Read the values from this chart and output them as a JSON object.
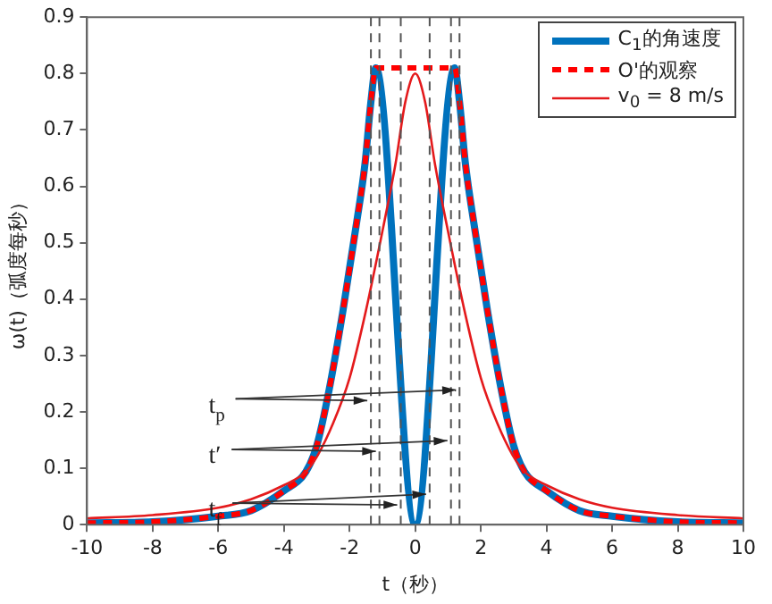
{
  "chart_data": {
    "type": "line",
    "xlabel": "t（秒）",
    "ylabel": "ω(t)（弧度每秒）",
    "xlim": [
      -10,
      10
    ],
    "xticks": [
      -10,
      -8,
      -6,
      -4,
      -2,
      0,
      2,
      4,
      6,
      8,
      10
    ],
    "ylim": [
      0,
      0.9
    ],
    "yticks": [
      0,
      0.1,
      0.2,
      0.3,
      0.4,
      0.5,
      0.6,
      0.7,
      0.8,
      0.9
    ],
    "grid": false,
    "legend": "top right",
    "marker": "none",
    "series": [
      {
        "name": "C$_{1}$的角速度",
        "color": "#0072bd",
        "line_style": "solid",
        "x": [
          -10,
          -8,
          -6,
          -5,
          -4,
          -3.33,
          -3,
          -2.62,
          -2.2,
          -1.8,
          -1.53,
          -1.35,
          -1.2,
          0,
          1.2,
          1.35,
          1.53,
          1.8,
          2.2,
          2.62,
          3,
          3.33,
          4,
          5,
          6,
          8,
          10
        ],
        "values": [
          0.003,
          0.005,
          0.015,
          0.025,
          0.06,
          0.094,
          0.14,
          0.24,
          0.38,
          0.53,
          0.64,
          0.75,
          0.81,
          0,
          0.81,
          0.75,
          0.64,
          0.53,
          0.38,
          0.24,
          0.14,
          0.094,
          0.06,
          0.025,
          0.015,
          0.005,
          0.003
        ]
      },
      {
        "name": "O'的观察",
        "color": "#ff0000",
        "line_style": "dashed",
        "x": [
          -10,
          -8,
          -6,
          -5,
          -4,
          -3.33,
          -3,
          -2.62,
          -2.2,
          -1.8,
          -1.53,
          -1.35,
          -1.2,
          1.2,
          1.35,
          1.53,
          1.8,
          2.2,
          2.62,
          3,
          3.33,
          4,
          5,
          6,
          8,
          10
        ],
        "values": [
          0.003,
          0.005,
          0.015,
          0.025,
          0.06,
          0.094,
          0.14,
          0.24,
          0.38,
          0.53,
          0.64,
          0.75,
          0.81,
          0.81,
          0.75,
          0.64,
          0.53,
          0.38,
          0.24,
          0.14,
          0.094,
          0.06,
          0.025,
          0.015,
          0.005,
          0.003
        ]
      },
      {
        "name": "v$_{0}$ = 8 m/s",
        "color": "#e41a1c",
        "line_style": "solid",
        "x": [
          -10,
          -8,
          -6,
          -5,
          -4,
          -3.33,
          -3,
          -2.5,
          -2,
          -1.5,
          -1,
          -0.6,
          -0.3,
          0,
          0.3,
          0.6,
          1,
          1.5,
          2,
          2.5,
          3,
          3.33,
          4,
          5,
          6,
          8,
          10
        ],
        "values": [
          0.011,
          0.017,
          0.03,
          0.045,
          0.07,
          0.094,
          0.12,
          0.18,
          0.26,
          0.38,
          0.52,
          0.64,
          0.75,
          0.8,
          0.75,
          0.64,
          0.52,
          0.38,
          0.26,
          0.18,
          0.12,
          0.094,
          0.07,
          0.045,
          0.03,
          0.017,
          0.011
        ]
      }
    ],
    "ref_lines": [
      {
        "axis": "x",
        "value": -1.35,
        "color": "#555555",
        "line_style": "dashed"
      },
      {
        "axis": "x",
        "value": -1.09,
        "color": "#555555",
        "line_style": "dashed"
      },
      {
        "axis": "x",
        "value": -0.44,
        "color": "#555555",
        "line_style": "dashed"
      },
      {
        "axis": "x",
        "value": 0.44,
        "color": "#555555",
        "line_style": "dashed"
      },
      {
        "axis": "x",
        "value": 1.09,
        "color": "#555555",
        "line_style": "dashed"
      },
      {
        "axis": "x",
        "value": 1.35,
        "color": "#555555",
        "line_style": "dashed"
      }
    ],
    "annotations": [
      {
        "text": "t$_{p}$",
        "x": -1.35,
        "y": 0.22
      },
      {
        "text": "t′",
        "x": -1.09,
        "y": 0.13
      },
      {
        "text": "t$_{f}$",
        "x": -0.44,
        "y": 0.035
      }
    ]
  }
}
